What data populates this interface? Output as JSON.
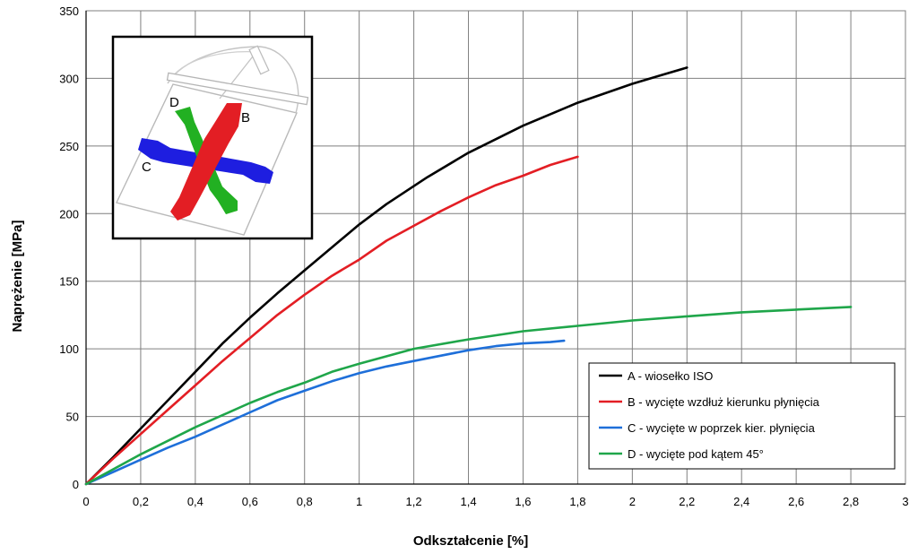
{
  "chart_data": {
    "type": "line",
    "xlabel": "Odkształcenie [%]",
    "ylabel": "Naprężenie [MPa]",
    "xlim": [
      0,
      3
    ],
    "ylim": [
      0,
      350
    ],
    "xticks": [
      "0",
      "0,2",
      "0,4",
      "0,6",
      "0,8",
      "1",
      "1,2",
      "1,4",
      "1,6",
      "1,8",
      "2",
      "2,2",
      "2,4",
      "2,6",
      "2,8",
      "3"
    ],
    "yticks": [
      "0",
      "50",
      "100",
      "150",
      "200",
      "250",
      "300",
      "350"
    ],
    "grid": true,
    "legend_position": "bottom-right",
    "series": [
      {
        "name": "A - wiosełko ISO",
        "color": "#000000",
        "x": [
          0,
          0.1,
          0.2,
          0.3,
          0.4,
          0.5,
          0.6,
          0.7,
          0.8,
          0.9,
          1.0,
          1.1,
          1.25,
          1.4,
          1.6,
          1.8,
          2.0,
          2.1,
          2.2
        ],
        "y": [
          0,
          20,
          41,
          62,
          83,
          104,
          123,
          141,
          158,
          175,
          192,
          207,
          227,
          245,
          265,
          282,
          296,
          302,
          308
        ]
      },
      {
        "name": "B - wycięte wzdłuż kierunku płynięcia",
        "color": "#e31e24",
        "x": [
          0,
          0.1,
          0.2,
          0.3,
          0.4,
          0.5,
          0.6,
          0.7,
          0.8,
          0.9,
          1.0,
          1.1,
          1.2,
          1.3,
          1.4,
          1.5,
          1.6,
          1.7,
          1.8
        ],
        "y": [
          0,
          19,
          37,
          55,
          73,
          91,
          108,
          125,
          140,
          154,
          166,
          180,
          191,
          202,
          212,
          221,
          228,
          236,
          242
        ]
      },
      {
        "name": "C - wycięte w poprzek kier. płynięcia",
        "color": "#1e6fd9",
        "x": [
          0,
          0.1,
          0.2,
          0.3,
          0.4,
          0.5,
          0.6,
          0.7,
          0.8,
          0.9,
          1.0,
          1.1,
          1.2,
          1.3,
          1.4,
          1.5,
          1.6,
          1.7,
          1.75
        ],
        "y": [
          0,
          9,
          18,
          27,
          35,
          44,
          53,
          62,
          69,
          76,
          82,
          87,
          91,
          95,
          99,
          102,
          104,
          105,
          106
        ]
      },
      {
        "name": "D - wycięte pod kątem 45°",
        "color": "#1fa64a",
        "x": [
          0,
          0.1,
          0.2,
          0.3,
          0.4,
          0.5,
          0.6,
          0.7,
          0.8,
          0.9,
          1.0,
          1.2,
          1.4,
          1.6,
          1.8,
          2.0,
          2.2,
          2.4,
          2.6,
          2.8
        ],
        "y": [
          0,
          11,
          22,
          32,
          42,
          51,
          60,
          68,
          75,
          83,
          89,
          100,
          107,
          113,
          117,
          121,
          124,
          127,
          129,
          131
        ]
      }
    ]
  },
  "inset": {
    "labels": {
      "d": "D",
      "b": "B",
      "c": "C"
    },
    "colors": {
      "d": "#22b022",
      "b": "#e31e24",
      "c": "#1e1ee0"
    }
  }
}
